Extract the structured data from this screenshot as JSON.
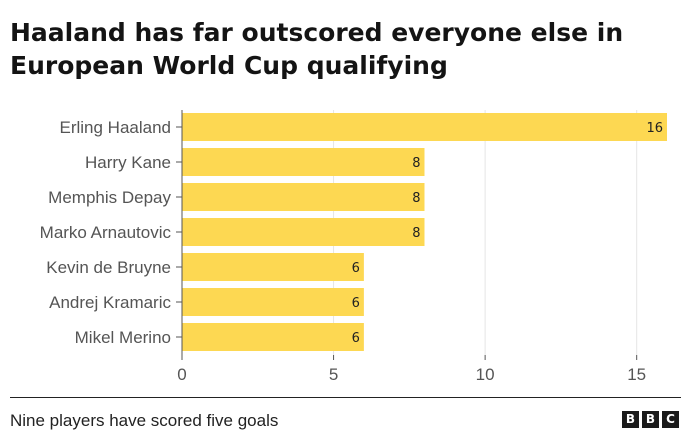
{
  "header": {
    "title_line1": "Haaland has far outscored everyone else in",
    "title_line2": "European World Cup qualifying"
  },
  "footer": {
    "note": "Nine players have scored five goals",
    "logo": {
      "b1": "B",
      "b2": "B",
      "c": "C"
    }
  },
  "colors": {
    "bar": "#fdd852",
    "axis": "#555555",
    "grid": "#e5e5e5",
    "label": "#555555",
    "value_label": "#222222"
  },
  "chart_data": {
    "type": "bar",
    "orientation": "horizontal",
    "title": "Haaland has far outscored everyone else in European World Cup qualifying",
    "categories": [
      "Erling Haaland",
      "Harry Kane",
      "Memphis Depay",
      "Marko Arnautovic",
      "Kevin de Bruyne",
      "Andrej Kramaric",
      "Mikel Merino"
    ],
    "values": [
      16,
      8,
      8,
      8,
      6,
      6,
      6
    ],
    "data_labels": [
      "16",
      "8",
      "8",
      "8",
      "6",
      "6",
      "6"
    ],
    "xlim": [
      0,
      16
    ],
    "xticks": [
      0,
      5,
      10,
      15
    ],
    "xtick_labels": [
      "0",
      "5",
      "10",
      "15"
    ],
    "xlabel": "",
    "ylabel": "",
    "grid": true
  }
}
